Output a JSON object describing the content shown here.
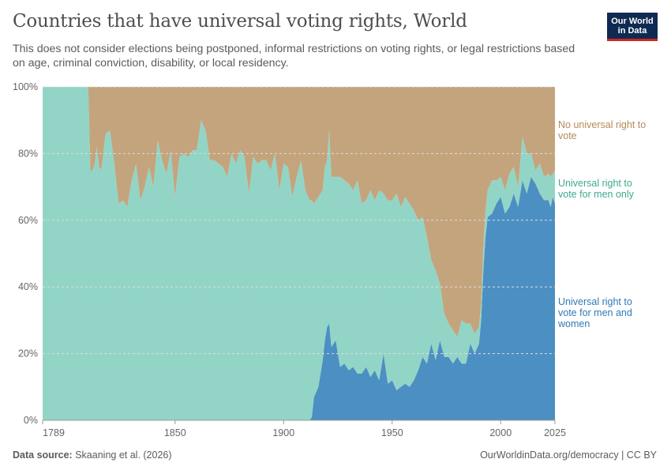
{
  "title": "Countries that have universal voting rights, World",
  "subtitle": "This does not consider elections being postponed, informal restrictions on voting rights, or legal restrictions based on age, criminal conviction, disability, or local residency.",
  "logo": {
    "line1": "Our World",
    "line2": "in Data",
    "bg": "#0f2a52",
    "accent": "#ce261e"
  },
  "footer": {
    "source_label": "Data source:",
    "source_text": "Skaaning et al. (2026)",
    "url": "OurWorldinData.org/democracy | CC BY"
  },
  "chart_data": {
    "type": "area",
    "stacked": true,
    "percent": true,
    "xlim": [
      1789,
      2025
    ],
    "ylim": [
      0,
      100
    ],
    "x_ticks": [
      "1789",
      "1850",
      "1900",
      "1950",
      "2000",
      "2025"
    ],
    "y_ticks": [
      "0%",
      "20%",
      "40%",
      "60%",
      "80%",
      "100%"
    ],
    "grid": "horizontal-dashed",
    "legend": "right-inline",
    "x": [
      1789,
      1810,
      1811,
      1812,
      1813,
      1814,
      1815,
      1816,
      1818,
      1820,
      1822,
      1824,
      1826,
      1828,
      1830,
      1832,
      1834,
      1836,
      1838,
      1840,
      1842,
      1844,
      1846,
      1848,
      1850,
      1852,
      1854,
      1856,
      1858,
      1860,
      1862,
      1864,
      1866,
      1868,
      1870,
      1872,
      1874,
      1876,
      1878,
      1880,
      1882,
      1884,
      1886,
      1888,
      1890,
      1892,
      1894,
      1896,
      1898,
      1900,
      1902,
      1904,
      1906,
      1908,
      1910,
      1912,
      1913,
      1914,
      1916,
      1918,
      1919,
      1920,
      1921,
      1922,
      1924,
      1926,
      1928,
      1930,
      1932,
      1934,
      1936,
      1938,
      1940,
      1942,
      1944,
      1946,
      1948,
      1950,
      1952,
      1954,
      1956,
      1958,
      1960,
      1962,
      1964,
      1966,
      1968,
      1970,
      1972,
      1974,
      1976,
      1978,
      1980,
      1982,
      1984,
      1986,
      1988,
      1990,
      1991,
      1992,
      1993,
      1994,
      1996,
      1998,
      2000,
      2002,
      2004,
      2006,
      2008,
      2010,
      2012,
      2014,
      2016,
      2018,
      2020,
      2022,
      2023,
      2024,
      2025
    ],
    "series": [
      {
        "name": "Universal right to vote for men and women",
        "color": "#4c8fc3",
        "values": [
          0,
          0,
          0,
          0,
          0,
          0,
          0,
          0,
          0,
          0,
          0,
          0,
          0,
          0,
          0,
          0,
          0,
          0,
          0,
          0,
          0,
          0,
          0,
          0,
          0,
          0,
          0,
          0,
          0,
          0,
          0,
          0,
          0,
          0,
          0,
          0,
          0,
          0,
          0,
          0,
          0,
          0,
          0,
          0,
          0,
          0,
          0,
          0,
          0,
          0,
          0,
          0,
          0,
          0,
          0,
          0,
          1,
          7,
          10,
          18,
          24,
          28,
          29,
          22,
          24,
          16,
          17,
          15,
          16,
          14,
          14,
          16,
          13,
          15,
          12,
          20,
          11,
          12,
          9,
          10,
          11,
          10,
          12,
          15,
          19,
          17,
          23,
          18,
          24,
          19,
          19,
          17,
          19,
          17,
          17,
          23,
          20,
          23,
          30,
          45,
          55,
          61,
          62,
          65,
          67,
          62,
          64,
          68,
          64,
          72,
          68,
          73,
          71,
          68,
          66,
          66,
          64,
          67,
          65
        ]
      },
      {
        "name": "Universal right to vote for men only",
        "color": "#92d5c6",
        "values": [
          100,
          100,
          75,
          75,
          77,
          82,
          76,
          75,
          86,
          87,
          77,
          65,
          66,
          64,
          72,
          77,
          66,
          70,
          76,
          70,
          84,
          78,
          74,
          81,
          67,
          79,
          80,
          79,
          81,
          81,
          90,
          87,
          78,
          78,
          77,
          76,
          73,
          80,
          77,
          81,
          79,
          68,
          79,
          77,
          78,
          78,
          75,
          80,
          69,
          77,
          76,
          67,
          73,
          78,
          69,
          66,
          65,
          58,
          57,
          51,
          52,
          50,
          58,
          51,
          49,
          57,
          55,
          56,
          53,
          58,
          51,
          50,
          56,
          51,
          57,
          48,
          55,
          54,
          59,
          54,
          56,
          55,
          51,
          45,
          42,
          38,
          25,
          27,
          17,
          13,
          10,
          10,
          6,
          13,
          12,
          6,
          6,
          5,
          5,
          7,
          8,
          8,
          10,
          7,
          6,
          7,
          10,
          8,
          6,
          13,
          12,
          7,
          4,
          9,
          7,
          8,
          9,
          7,
          10
        ]
      },
      {
        "name": "No universal right to vote",
        "color": "#c4a47d",
        "values": [
          0,
          0,
          25,
          25,
          23,
          18,
          24,
          25,
          14,
          13,
          23,
          35,
          34,
          36,
          28,
          23,
          34,
          30,
          24,
          30,
          16,
          22,
          26,
          19,
          33,
          21,
          20,
          21,
          19,
          19,
          10,
          13,
          22,
          22,
          23,
          24,
          27,
          20,
          23,
          19,
          21,
          32,
          21,
          23,
          22,
          22,
          25,
          20,
          31,
          23,
          24,
          33,
          27,
          22,
          31,
          34,
          34,
          35,
          33,
          31,
          24,
          22,
          13,
          27,
          27,
          27,
          28,
          29,
          31,
          28,
          35,
          34,
          31,
          34,
          31,
          32,
          34,
          34,
          32,
          36,
          33,
          35,
          37,
          40,
          39,
          45,
          52,
          55,
          59,
          68,
          71,
          73,
          75,
          70,
          71,
          71,
          74,
          72,
          65,
          48,
          37,
          31,
          28,
          28,
          27,
          31,
          26,
          24,
          30,
          15,
          20,
          20,
          25,
          23,
          27,
          26,
          27,
          26,
          25
        ]
      }
    ]
  },
  "labels": {
    "no_vote": "No universal right to vote",
    "men_only": "Universal right to vote for men only",
    "men_women": "Universal right to vote for men and women"
  }
}
